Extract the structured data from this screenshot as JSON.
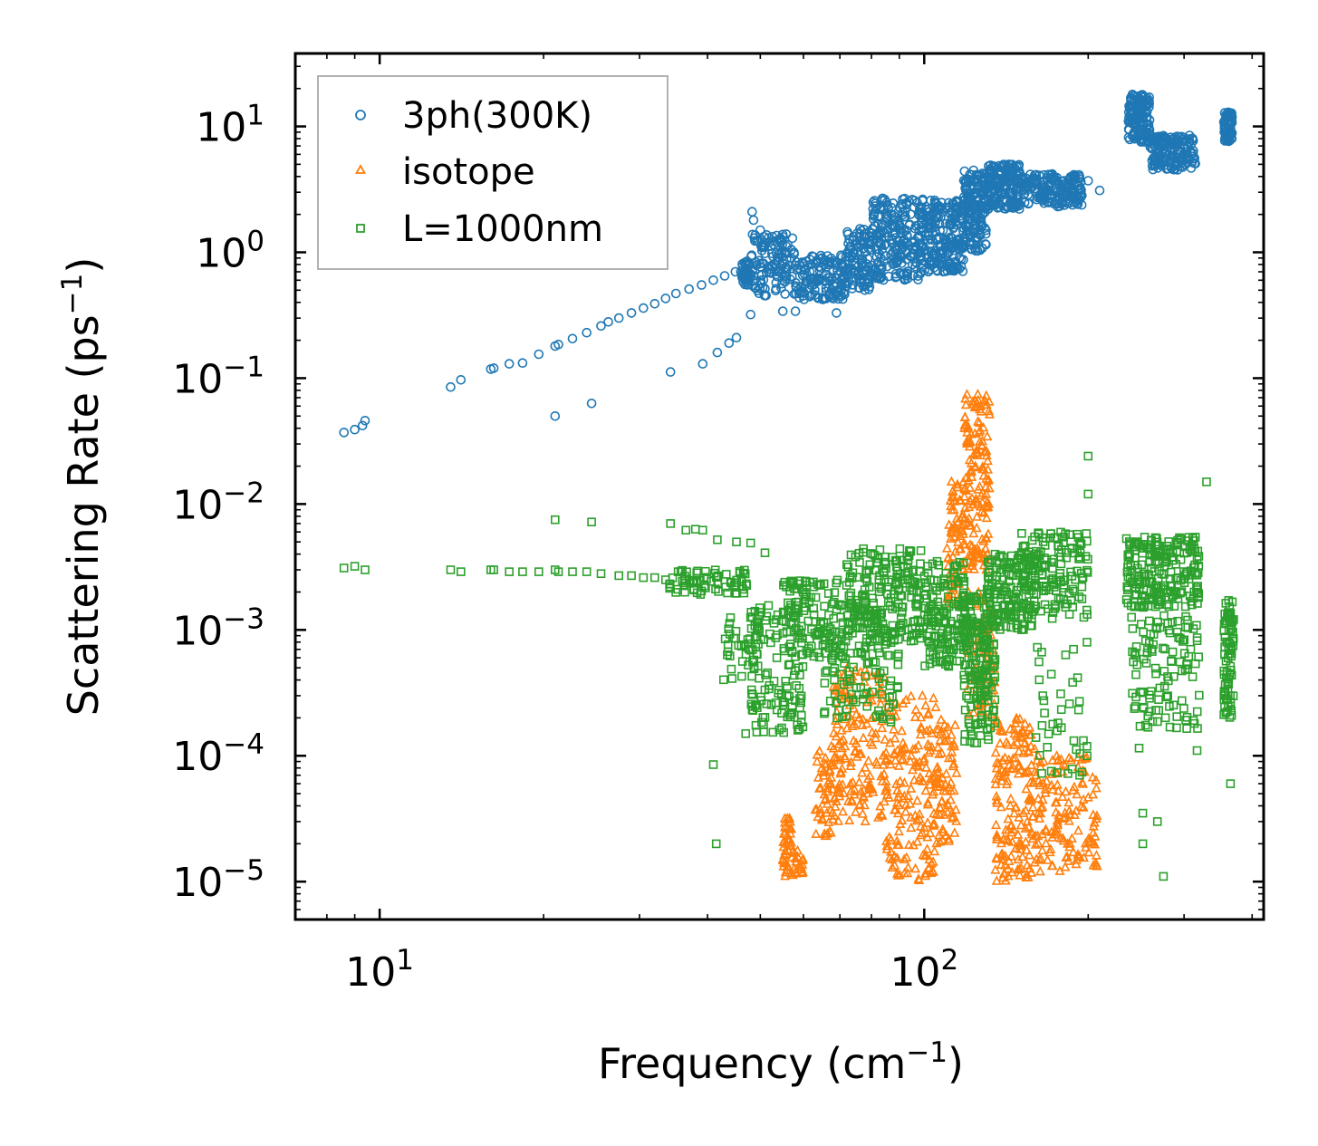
{
  "chart_data": {
    "type": "scatter",
    "xscale": "log",
    "yscale": "log",
    "xlabel": "Frequency (cm",
    "xlabel_sup": "−1",
    "xlabel_end": ")",
    "ylabel": "Scattering Rate (ps",
    "ylabel_sup": "−1",
    "ylabel_end": ")",
    "xlim": [
      7.0,
      420
    ],
    "ylim": [
      5e-06,
      38
    ],
    "x_ticks": [
      {
        "base": "10",
        "exp": "1",
        "value": 10
      },
      {
        "base": "10",
        "exp": "2",
        "value": 100
      }
    ],
    "y_ticks": [
      {
        "base": "10",
        "exp": "1",
        "value": 10
      },
      {
        "base": "10",
        "exp": "0",
        "value": 1
      },
      {
        "base": "10",
        "exp": "−1",
        "value": 0.1
      },
      {
        "base": "10",
        "exp": "−2",
        "value": 0.01
      },
      {
        "base": "10",
        "exp": "−3",
        "value": 0.001
      },
      {
        "base": "10",
        "exp": "−4",
        "value": 0.0001
      },
      {
        "base": "10",
        "exp": "−5",
        "value": 1e-05
      }
    ],
    "legend_position": "top-left",
    "series": [
      {
        "name": "3ph(300K)",
        "marker": "circle",
        "color": "#1f77b4",
        "points": [
          [
            8.6,
            0.037
          ],
          [
            9.0,
            0.039
          ],
          [
            9.3,
            0.042
          ],
          [
            9.4,
            0.046
          ],
          [
            13.5,
            0.085
          ],
          [
            14.1,
            0.097
          ],
          [
            16.0,
            0.118
          ],
          [
            16.2,
            0.12
          ],
          [
            17.3,
            0.13
          ],
          [
            18.3,
            0.132
          ],
          [
            19.6,
            0.155
          ],
          [
            21.0,
            0.18
          ],
          [
            21.3,
            0.185
          ],
          [
            21.0,
            0.05
          ],
          [
            24.5,
            0.063
          ],
          [
            22.6,
            0.206
          ],
          [
            24.0,
            0.23
          ],
          [
            25.5,
            0.26
          ],
          [
            26.3,
            0.28
          ],
          [
            27.5,
            0.3
          ],
          [
            29.0,
            0.33
          ],
          [
            30.5,
            0.36
          ],
          [
            32.0,
            0.39
          ],
          [
            33.5,
            0.43
          ],
          [
            35.0,
            0.47
          ],
          [
            37.0,
            0.51
          ],
          [
            39.0,
            0.55
          ],
          [
            41.0,
            0.6
          ],
          [
            43.0,
            0.65
          ],
          [
            45.0,
            0.7
          ],
          [
            47.0,
            0.74
          ],
          [
            34.2,
            0.112
          ],
          [
            39.2,
            0.13
          ],
          [
            41.7,
            0.16
          ],
          [
            43.8,
            0.19
          ],
          [
            45.2,
            0.21
          ],
          [
            48.0,
            0.32
          ],
          [
            48.3,
            2.1
          ],
          [
            48.6,
            1.8
          ],
          [
            50.0,
            1.5
          ],
          [
            52.0,
            1.2
          ],
          [
            55.0,
            0.34
          ],
          [
            58.0,
            0.34
          ],
          [
            69.0,
            0.33
          ],
          [
            200.0,
            3.7
          ],
          [
            210.0,
            3.1
          ]
        ],
        "bands": [
          {
            "x0": 46,
            "x1": 48,
            "y0": 0.55,
            "y1": 0.85,
            "n": 40
          },
          {
            "x0": 48,
            "x1": 58,
            "y0": 0.45,
            "y1": 1.4,
            "n": 120
          },
          {
            "x0": 58,
            "x1": 72,
            "y0": 0.42,
            "y1": 0.95,
            "n": 140
          },
          {
            "x0": 72,
            "x1": 80,
            "y0": 0.5,
            "y1": 1.6,
            "n": 100
          },
          {
            "x0": 80,
            "x1": 100,
            "y0": 0.6,
            "y1": 2.8,
            "n": 240
          },
          {
            "x0": 100,
            "x1": 118,
            "y0": 0.7,
            "y1": 2.6,
            "n": 200
          },
          {
            "x0": 118,
            "x1": 130,
            "y0": 1.0,
            "y1": 4.5,
            "n": 160
          },
          {
            "x0": 130,
            "x1": 150,
            "y0": 2.2,
            "y1": 5.0,
            "n": 170
          },
          {
            "x0": 150,
            "x1": 195,
            "y0": 2.3,
            "y1": 4.2,
            "n": 170
          },
          {
            "x0": 237,
            "x1": 260,
            "y0": 7.5,
            "y1": 18,
            "n": 140
          },
          {
            "x0": 260,
            "x1": 315,
            "y0": 4.5,
            "y1": 8.5,
            "n": 160
          },
          {
            "x0": 355,
            "x1": 368,
            "y0": 7.5,
            "y1": 13,
            "n": 70
          }
        ]
      },
      {
        "name": "isotope",
        "marker": "triangle",
        "color": "#ff7f0e",
        "points": [
          [
            118,
            0.015
          ],
          [
            112,
            0.006
          ],
          [
            126,
            0.004
          ],
          [
            130,
            0.003
          ]
        ],
        "bands": [
          {
            "x0": 55,
            "x1": 57,
            "y0": 1.1e-05,
            "y1": 3.2e-05,
            "n": 40
          },
          {
            "x0": 57,
            "x1": 60,
            "y0": 1.1e-05,
            "y1": 1.8e-05,
            "n": 20
          },
          {
            "x0": 63,
            "x1": 68,
            "y0": 2.2e-05,
            "y1": 0.00012,
            "n": 50
          },
          {
            "x0": 68,
            "x1": 85,
            "y0": 3e-05,
            "y1": 0.0005,
            "n": 160
          },
          {
            "x0": 85,
            "x1": 105,
            "y0": 1e-05,
            "y1": 0.0003,
            "n": 170
          },
          {
            "x0": 105,
            "x1": 115,
            "y0": 2e-05,
            "y1": 0.0002,
            "n": 70
          },
          {
            "x0": 110,
            "x1": 118,
            "y0": 0.0015,
            "y1": 0.016,
            "n": 60
          },
          {
            "x0": 118,
            "x1": 132,
            "y0": 0.003,
            "y1": 0.075,
            "n": 150
          },
          {
            "x0": 120,
            "x1": 135,
            "y0": 0.0002,
            "y1": 0.002,
            "n": 80
          },
          {
            "x0": 135,
            "x1": 160,
            "y0": 1e-05,
            "y1": 0.0002,
            "n": 160
          },
          {
            "x0": 160,
            "x1": 208,
            "y0": 1.2e-05,
            "y1": 0.0001,
            "n": 140
          }
        ]
      },
      {
        "name": "L=1000nm",
        "marker": "square",
        "color": "#2ca02c",
        "points": [
          [
            8.6,
            0.0031
          ],
          [
            9.0,
            0.0032
          ],
          [
            9.4,
            0.003
          ],
          [
            13.5,
            0.003
          ],
          [
            14.1,
            0.0029
          ],
          [
            16.0,
            0.003
          ],
          [
            16.2,
            0.003
          ],
          [
            17.3,
            0.0029
          ],
          [
            18.3,
            0.0029
          ],
          [
            19.6,
            0.0029
          ],
          [
            21.0,
            0.0075
          ],
          [
            21.0,
            0.003
          ],
          [
            21.3,
            0.0029
          ],
          [
            22.6,
            0.0029
          ],
          [
            24.5,
            0.0072
          ],
          [
            24.0,
            0.0029
          ],
          [
            25.5,
            0.0028
          ],
          [
            27.5,
            0.0027
          ],
          [
            29.0,
            0.0027
          ],
          [
            30.5,
            0.0026
          ],
          [
            32.0,
            0.0026
          ],
          [
            33.5,
            0.0025
          ],
          [
            34.2,
            0.007
          ],
          [
            36.5,
            0.0062
          ],
          [
            38.0,
            0.0063
          ],
          [
            39.2,
            0.0062
          ],
          [
            41.7,
            0.0052
          ],
          [
            45.2,
            0.005
          ],
          [
            48.0,
            0.0049
          ],
          [
            51.0,
            0.0041
          ],
          [
            41.0,
            8.5e-05
          ],
          [
            41.5,
            2e-05
          ],
          [
            47.0,
            0.00015
          ],
          [
            200.0,
            0.024
          ],
          [
            200.0,
            0.012
          ],
          [
            330.0,
            0.015
          ],
          [
            248.0,
            0.000115
          ],
          [
            252.0,
            3.5e-05
          ],
          [
            252.0,
            2e-05
          ],
          [
            268.0,
            3e-05
          ],
          [
            275.0,
            1.1e-05
          ],
          [
            365.0,
            6e-05
          ],
          [
            317.0,
            0.00011
          ]
        ],
        "bands": [
          {
            "x0": 34,
            "x1": 48,
            "y0": 0.0019,
            "y1": 0.003,
            "n": 70
          },
          {
            "x0": 42,
            "x1": 50,
            "y0": 0.0004,
            "y1": 0.0013,
            "n": 40
          },
          {
            "x0": 48,
            "x1": 60,
            "y0": 0.00015,
            "y1": 0.0016,
            "n": 120
          },
          {
            "x0": 55,
            "x1": 72,
            "y0": 0.0006,
            "y1": 0.0025,
            "n": 120
          },
          {
            "x0": 65,
            "x1": 90,
            "y0": 0.00018,
            "y1": 0.001,
            "n": 100
          },
          {
            "x0": 72,
            "x1": 100,
            "y0": 0.0008,
            "y1": 0.0045,
            "n": 230
          },
          {
            "x0": 100,
            "x1": 120,
            "y0": 0.0005,
            "y1": 0.0035,
            "n": 160
          },
          {
            "x0": 118,
            "x1": 135,
            "y0": 0.00012,
            "y1": 0.002,
            "n": 170
          },
          {
            "x0": 130,
            "x1": 160,
            "y0": 0.001,
            "y1": 0.004,
            "n": 160
          },
          {
            "x0": 150,
            "x1": 200,
            "y0": 0.0012,
            "y1": 0.006,
            "n": 150
          },
          {
            "x0": 160,
            "x1": 200,
            "y0": 7e-05,
            "y1": 0.0008,
            "n": 40
          },
          {
            "x0": 235,
            "x1": 320,
            "y0": 0.0015,
            "y1": 0.0055,
            "n": 220
          },
          {
            "x0": 240,
            "x1": 320,
            "y0": 0.00016,
            "y1": 0.0013,
            "n": 110
          },
          {
            "x0": 355,
            "x1": 370,
            "y0": 0.0002,
            "y1": 0.0018,
            "n": 80
          }
        ]
      }
    ]
  }
}
